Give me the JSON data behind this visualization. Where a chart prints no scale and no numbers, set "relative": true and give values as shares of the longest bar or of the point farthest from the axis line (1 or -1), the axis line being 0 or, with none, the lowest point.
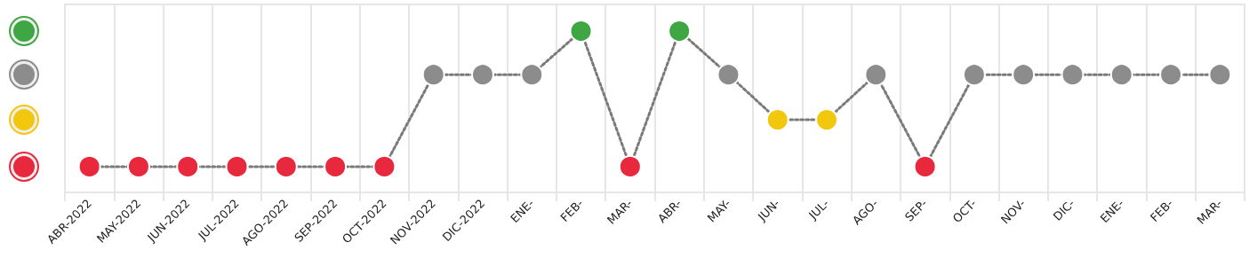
{
  "chart_data": {
    "type": "line",
    "relative": true,
    "categories": [
      "ABR-2022",
      "MAY-2022",
      "JUN-2022",
      "JUL-2022",
      "AGO-2022",
      "SEP-2022",
      "OCT-2022",
      "NOV-2022",
      "DIC-2022",
      "ENE-",
      "FEB-",
      "MAR-",
      "ABR-",
      "MAY-",
      "JUN-",
      "JUL-",
      "AGO-",
      "SEP-",
      "OCT-",
      "NOV-",
      "DIC-",
      "ENE-",
      "FEB-",
      "MAR-"
    ],
    "series": [
      {
        "color": "#7a7a7a",
        "values": [
          0.16,
          0.16,
          0.16,
          0.16,
          0.16,
          0.16,
          0.16,
          0.73,
          0.73,
          0.73,
          1,
          0.16,
          1,
          0.73,
          0.45,
          0.45,
          0.73,
          0.16,
          0.73,
          0.73,
          0.73,
          0.73,
          0.73,
          0.73
        ],
        "colors": [
          "#e8283c",
          "#e8283c",
          "#e8283c",
          "#e8283c",
          "#e8283c",
          "#e8283c",
          "#e8283c",
          "#8c8c8c",
          "#8c8c8c",
          "#8c8c8c",
          "#3ea743",
          "#e8283c",
          "#3ea743",
          "#8c8c8c",
          "#f2c80f",
          "#f2c80f",
          "#8c8c8c",
          "#e8283c",
          "#8c8c8c",
          "#8c8c8c",
          "#8c8c8c",
          "#8c8c8c",
          "#8c8c8c",
          "#8c8c8c"
        ]
      }
    ],
    "marker": "circle",
    "line_style": "dotted",
    "grid": "x"
  }
}
